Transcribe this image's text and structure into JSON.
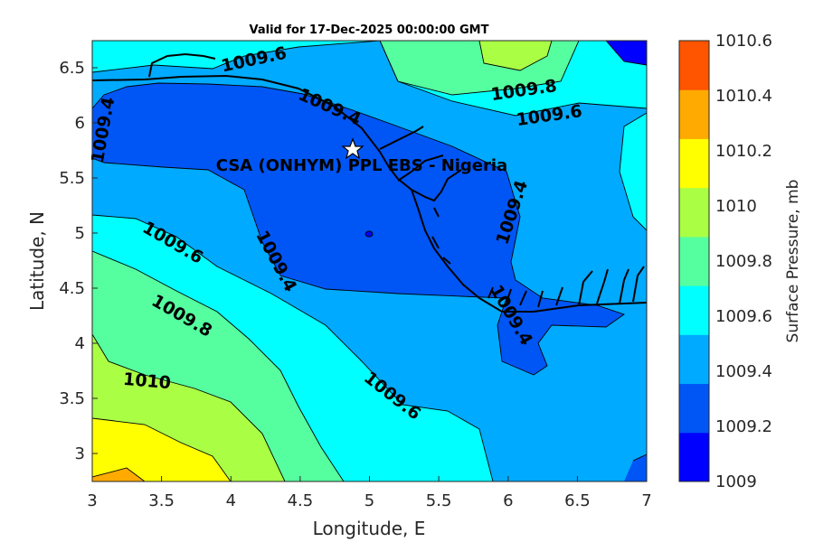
{
  "title": "Valid for 17-Dec-2025 00:00:00 GMT",
  "site_label": "CSA (ONHYM) PPL EBS - Nigeria",
  "xlabel": "Longitude, E",
  "ylabel": "Latitude, N",
  "colorbar_label": "Surface Pressure, mb",
  "chart_data": {
    "type": "contour",
    "xlim": [
      3,
      7
    ],
    "ylim": [
      2.75,
      6.75
    ],
    "xticks": [
      "3",
      "3.5",
      "4",
      "4.5",
      "5",
      "5.5",
      "6",
      "6.5",
      "7"
    ],
    "yticks": [
      "3",
      "3.5",
      "4",
      "4.5",
      "5",
      "5.5",
      "6",
      "6.5"
    ],
    "levels": [
      1009.0,
      1009.2,
      1009.4,
      1009.6,
      1009.8,
      1010.0,
      1010.2,
      1010.4,
      1010.6
    ],
    "colorbar_ticks": [
      "1009",
      "1009.2",
      "1009.4",
      "1009.6",
      "1009.8",
      "1010",
      "1010.2",
      "1010.4",
      "1010.6"
    ],
    "colorbar_colors": [
      "#0000ff",
      "#0055f5",
      "#00aaff",
      "#00ffff",
      "#55ff9f",
      "#aaff44",
      "#ffff00",
      "#ffaa00",
      "#ff5500"
    ],
    "contour_labels": [
      "1009.6",
      "1009.8",
      "1009.6",
      "1009.4",
      "1009.4",
      "1009.4",
      "1009.4",
      "1009.6",
      "1009.8",
      "1010",
      "1009.4",
      "1009.6"
    ],
    "site": {
      "lon": 4.88,
      "lat": 5.75
    }
  }
}
